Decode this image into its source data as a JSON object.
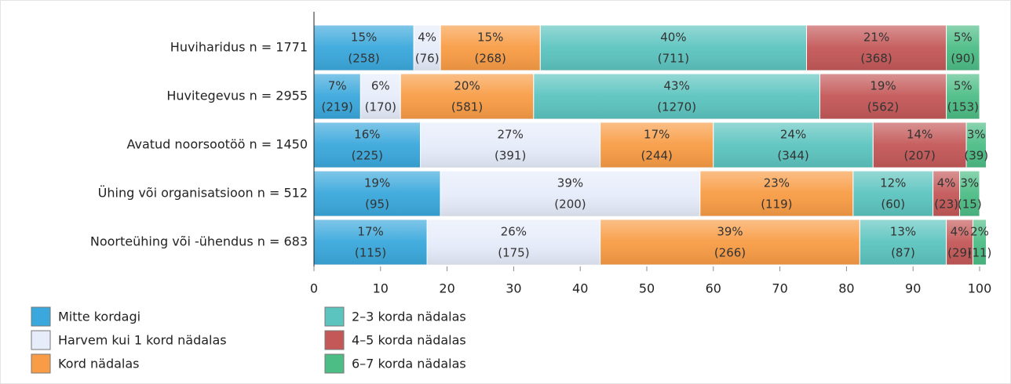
{
  "chart_data": {
    "type": "stacked-barh",
    "categories": [
      "Huviharidus n = 1771",
      "Huvitegevus n = 2955",
      "Avatud noorsootöö n = 1450",
      "Ühing või organisatsioon   n = 512",
      "Noorteühing või -ühendus   n = 683"
    ],
    "series": [
      {
        "name": "Mitte kordagi",
        "color": "#3aa8dc",
        "values": [
          15,
          7,
          16,
          19,
          17
        ],
        "value_labels": [
          "15%",
          "7%",
          "16%",
          "19%",
          "17%"
        ],
        "count_labels": [
          "(258)",
          "(219)",
          "(225)",
          "(95)",
          "(115)"
        ]
      },
      {
        "name": "Harvem kui 1 kord nädalas",
        "color": "#e6ecfa",
        "values": [
          4,
          6,
          27,
          39,
          26
        ],
        "value_labels": [
          "4%",
          "6%",
          "27%",
          "39%",
          "26%"
        ],
        "count_labels": [
          "(76)",
          "(170)",
          "(391)",
          "(200)",
          "(175)"
        ]
      },
      {
        "name": "Kord nädalas",
        "color": "#f89c45",
        "values": [
          15,
          20,
          17,
          23,
          39
        ],
        "value_labels": [
          "15%",
          "20%",
          "17%",
          "23%",
          "39%"
        ],
        "count_labels": [
          "(268)",
          "(581)",
          "(244)",
          "(119)",
          "(266)"
        ]
      },
      {
        "name": "2–3 korda nädalas",
        "color": "#5cc4bf",
        "values": [
          40,
          43,
          24,
          12,
          13
        ],
        "value_labels": [
          "40%",
          "43%",
          "24%",
          "12%",
          "13%"
        ],
        "count_labels": [
          "(711)",
          "(1270)",
          "(344)",
          "(60)",
          "(87)"
        ]
      },
      {
        "name": "4–5 korda nädalas",
        "color": "#c45858",
        "values": [
          21,
          19,
          14,
          4,
          4
        ],
        "value_labels": [
          "21%",
          "19%",
          "14%",
          "4%",
          "4%"
        ],
        "count_labels": [
          "(368)",
          "(562)",
          "(207)",
          "(23)",
          "(29)"
        ]
      },
      {
        "name": "6–7 korda nädalas",
        "color": "#4cbd85",
        "values": [
          5,
          5,
          3,
          3,
          2
        ],
        "value_labels": [
          "5%",
          "5%",
          "3%",
          "3%",
          "2%"
        ],
        "count_labels": [
          "(90)",
          "(153)",
          "(39)",
          "(15)",
          "(11)"
        ]
      }
    ],
    "xlim": [
      0,
      100
    ],
    "xticks": [
      0,
      10,
      20,
      30,
      40,
      50,
      60,
      70,
      80,
      90,
      100
    ]
  }
}
